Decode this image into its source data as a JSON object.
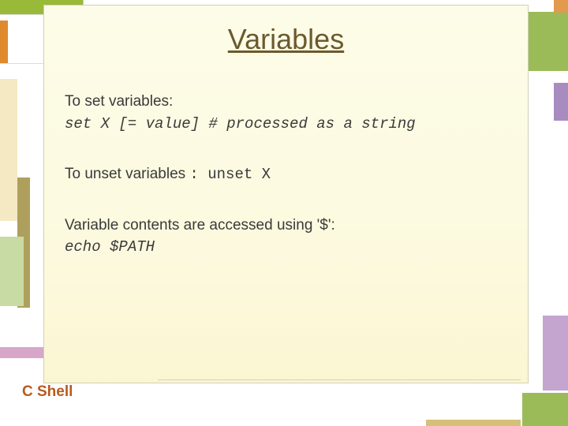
{
  "slide": {
    "title": "Variables",
    "footer": "C Shell",
    "blocks": [
      {
        "label": "To set variables:",
        "code": "set X [= value] # processed as a string"
      },
      {
        "label_prefix": "To unset variables ",
        "label_sep": ": ",
        "inline_code": "unset X"
      },
      {
        "label": "Variable contents are accessed using '$':",
        "code": "echo $PATH"
      }
    ],
    "colors": {
      "title_color": "#6b5a2e",
      "footer_color": "#b85a1e",
      "panel_bg_top": "#fdfce8",
      "panel_bg_bottom": "#fbf6d2",
      "accent_green": "#99b938",
      "accent_orange": "#e08a2e",
      "accent_pink": "#d8a6c8",
      "accent_purple": "#a88cc0"
    },
    "title_fontsize": 36,
    "body_fontsize": 19
  }
}
